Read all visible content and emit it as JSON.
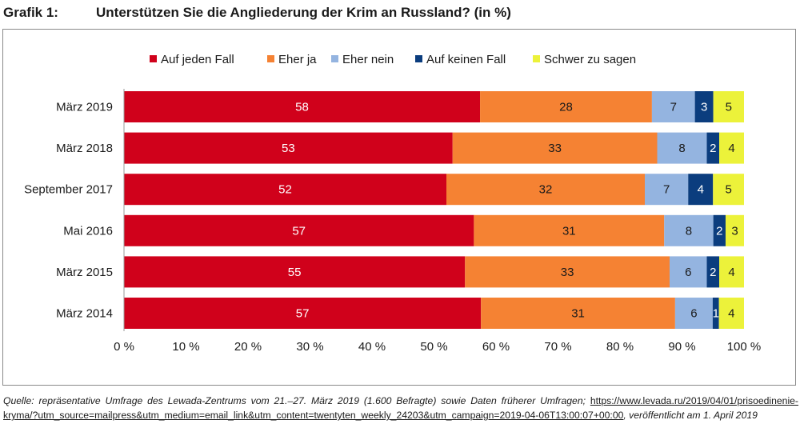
{
  "figure": {
    "label": "Grafik 1:",
    "title": "Unterstützen Sie die Angliederung der Krim an Russland? (in %)"
  },
  "source": {
    "prefix": "Quelle: repräsentative Umfrage des Lewada-Zentrums vom 21.–27. März 2019 (1.600 Befragte) sowie Daten früherer Umfragen; ",
    "url": "https://www.levada.ru/2019/04/01/prisoedinenie-kryma/?utm_source=mailpress&utm_medium=email_link&utm_content=twentyten_weekly_24203&utm_campaign=2019-04-06T13:00:07+00:00",
    "suffix": ", veröffentlicht am 1. April 2019"
  },
  "chart_data": {
    "type": "bar",
    "orientation": "horizontal",
    "stacked": "percent",
    "categories": [
      "März 2019",
      "März 2018",
      "September 2017",
      "Mai 2016",
      "März 2015",
      "März 2014"
    ],
    "series": [
      {
        "name": "Auf jeden Fall",
        "color": "#d0011b",
        "label_color": "#ffffff",
        "values": [
          58,
          53,
          52,
          57,
          55,
          57
        ]
      },
      {
        "name": "Eher ja",
        "color": "#f58233",
        "label_color": "#1a1a1a",
        "values": [
          28,
          33,
          32,
          31,
          33,
          31
        ]
      },
      {
        "name": "Eher nein",
        "color": "#94b4e0",
        "label_color": "#1a1a1a",
        "values": [
          7,
          8,
          7,
          8,
          6,
          6
        ]
      },
      {
        "name": "Auf keinen Fall",
        "color": "#0b3d7e",
        "label_color": "#ffffff",
        "values": [
          3,
          2,
          4,
          2,
          2,
          1
        ]
      },
      {
        "name": "Schwer zu sagen",
        "color": "#ecf23a",
        "label_color": "#1a1a1a",
        "values": [
          5,
          4,
          5,
          3,
          4,
          4
        ]
      }
    ],
    "x_ticks": [
      "0 %",
      "10 %",
      "20 %",
      "30 %",
      "40 %",
      "50 %",
      "60 %",
      "70 %",
      "80 %",
      "90 %",
      "100 %"
    ],
    "xlim": [
      0,
      100
    ],
    "grid": false,
    "legend_position": "top"
  }
}
